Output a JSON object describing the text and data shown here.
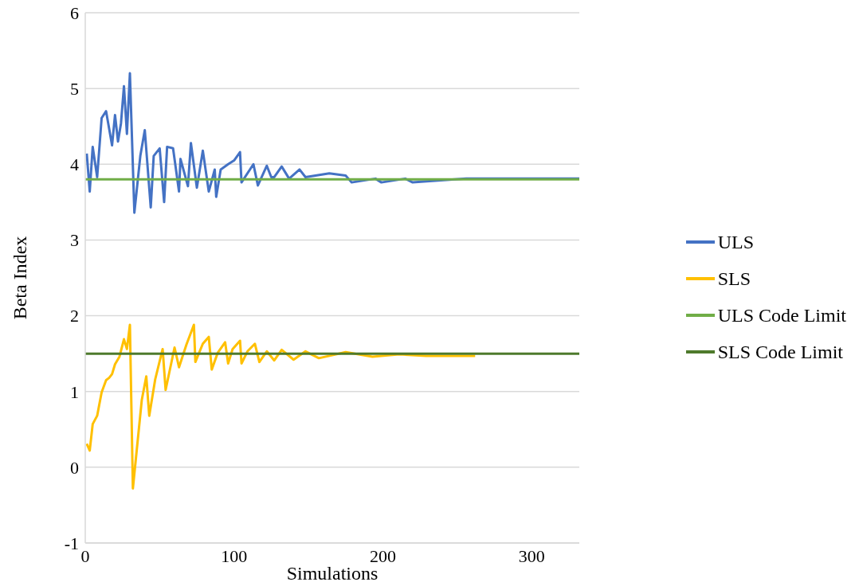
{
  "chart_data": {
    "type": "line",
    "xlabel": "Simulations",
    "ylabel": "Beta Index",
    "xlim": [
      0,
      332
    ],
    "xticks": [
      0,
      100,
      200,
      300
    ],
    "ylim": [
      -1,
      6
    ],
    "yticks": [
      -1,
      0,
      1,
      2,
      3,
      4,
      5,
      6
    ],
    "grid": "y",
    "legend": "right",
    "marker": "none",
    "line_style": "solid",
    "series": [
      {
        "name": "ULS",
        "color": "#4472c4",
        "x": [
          1,
          3,
          5,
          8,
          11,
          14,
          18,
          20,
          22,
          24,
          26,
          28,
          30,
          33,
          37,
          40,
          44,
          46,
          50,
          53,
          55,
          59,
          63,
          64,
          69,
          71,
          75,
          79,
          83,
          87,
          88,
          91,
          96,
          100,
          104,
          105,
          113,
          116,
          122,
          125,
          127,
          132,
          137,
          144,
          148,
          164,
          175,
          179,
          195,
          199,
          215,
          220,
          256,
          277,
          320,
          332
        ],
        "values": [
          4.14,
          3.64,
          4.23,
          3.83,
          4.61,
          4.7,
          4.25,
          4.65,
          4.3,
          4.54,
          5.03,
          4.4,
          5.2,
          3.36,
          4.11,
          4.45,
          3.43,
          4.11,
          4.21,
          3.5,
          4.23,
          4.21,
          3.64,
          4.07,
          3.71,
          4.28,
          3.69,
          4.18,
          3.64,
          3.93,
          3.57,
          3.93,
          4.0,
          4.05,
          4.16,
          3.76,
          4.0,
          3.72,
          3.98,
          3.83,
          3.83,
          3.97,
          3.81,
          3.93,
          3.83,
          3.88,
          3.85,
          3.76,
          3.81,
          3.76,
          3.81,
          3.76,
          3.81,
          3.81,
          3.81,
          3.81
        ]
      },
      {
        "name": "SLS",
        "color": "#ffc000",
        "x": [
          1,
          3,
          5,
          8,
          11,
          14,
          16,
          18,
          20,
          23,
          26,
          28,
          30,
          32,
          38,
          41,
          43,
          47,
          52,
          54,
          60,
          63,
          68,
          73,
          74,
          79,
          83,
          85,
          89,
          94,
          96,
          99,
          104,
          105,
          109,
          114,
          117,
          122,
          127,
          132,
          140,
          148,
          157,
          175,
          193,
          211,
          229,
          262
        ],
        "values": [
          0.31,
          0.22,
          0.57,
          0.68,
          0.99,
          1.15,
          1.18,
          1.23,
          1.36,
          1.46,
          1.69,
          1.56,
          1.88,
          -0.28,
          0.89,
          1.2,
          0.68,
          1.16,
          1.56,
          1.02,
          1.58,
          1.32,
          1.62,
          1.88,
          1.39,
          1.63,
          1.72,
          1.29,
          1.51,
          1.65,
          1.37,
          1.56,
          1.67,
          1.37,
          1.53,
          1.63,
          1.39,
          1.53,
          1.41,
          1.55,
          1.42,
          1.53,
          1.44,
          1.52,
          1.46,
          1.49,
          1.47,
          1.47
        ]
      },
      {
        "name": "ULS Code Limit",
        "color": "#70ad47",
        "x": [
          0,
          332
        ],
        "values": [
          3.8,
          3.8
        ]
      },
      {
        "name": "SLS Code Limit",
        "color": "#4e7a2c",
        "x": [
          0,
          332
        ],
        "values": [
          1.5,
          1.5
        ]
      }
    ]
  }
}
